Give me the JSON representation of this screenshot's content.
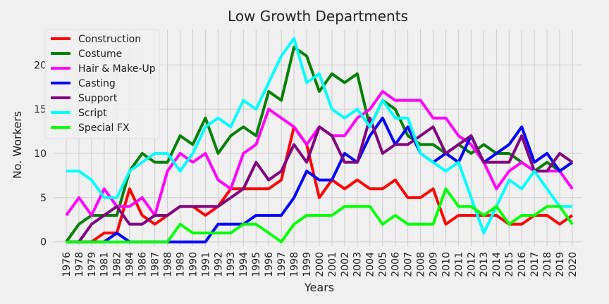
{
  "chart_data": {
    "type": "line",
    "title": "Low Growth Departments",
    "xlabel": "Years",
    "ylabel": "No. Workers",
    "ylim": [
      -0.5,
      24
    ],
    "yticks": [
      0,
      5,
      10,
      15,
      20
    ],
    "grid": true,
    "legend_position": "top-left",
    "categories": [
      "1976",
      "1978",
      "1979",
      "1981",
      "1982",
      "1984",
      "1986",
      "1987",
      "1988",
      "1989",
      "1990",
      "1991",
      "1992",
      "1993",
      "1994",
      "1995",
      "1996",
      "1997",
      "1998",
      "1999",
      "2000",
      "2001",
      "2002",
      "2003",
      "2004",
      "2005",
      "2006",
      "2007",
      "2008",
      "2009",
      "2010",
      "2011",
      "2012",
      "2013",
      "2014",
      "2015",
      "2016",
      "2017",
      "2018",
      "2019",
      "2020"
    ],
    "series": [
      {
        "name": "Construction",
        "color": "#ff0000",
        "values": [
          0,
          0,
          0,
          1,
          1,
          6,
          3,
          2,
          3,
          4,
          4,
          3,
          4,
          6,
          6,
          6,
          6,
          7,
          13,
          11,
          5,
          7,
          6,
          7,
          6,
          6,
          7,
          5,
          5,
          6,
          2,
          3,
          3,
          3,
          3,
          2,
          2,
          3,
          3,
          2,
          3
        ]
      },
      {
        "name": "Costume",
        "color": "#008000",
        "values": [
          0,
          2,
          3,
          3,
          3,
          8,
          10,
          9,
          9,
          12,
          11,
          14,
          10,
          12,
          13,
          12,
          17,
          16,
          22,
          21,
          17,
          19,
          18,
          19,
          13,
          16,
          15,
          12,
          11,
          11,
          10,
          11,
          10,
          11,
          10,
          10,
          9,
          8,
          9,
          8,
          9
        ]
      },
      {
        "name": "Hair & Make-Up",
        "color": "#ff00ff",
        "values": [
          3,
          5,
          3,
          6,
          4,
          4,
          5,
          3,
          8,
          10,
          9,
          10,
          7,
          6,
          10,
          11,
          15,
          14,
          13,
          11,
          13,
          12,
          12,
          14,
          15,
          17,
          16,
          16,
          16,
          14,
          14,
          12,
          11,
          9,
          6,
          8,
          9,
          8,
          8,
          8,
          6
        ]
      },
      {
        "name": "Casting",
        "color": "#0000ff",
        "values": [
          0,
          0,
          0,
          0,
          1,
          0,
          0,
          0,
          0,
          0,
          0,
          0,
          2,
          2,
          2,
          3,
          3,
          3,
          5,
          8,
          7,
          7,
          10,
          9,
          12,
          14,
          11,
          13,
          10,
          9,
          10,
          9,
          12,
          9,
          10,
          11,
          13,
          9,
          10,
          8,
          9
        ]
      },
      {
        "name": "Support",
        "color": "#800080",
        "values": [
          0,
          0,
          2,
          3,
          4,
          2,
          2,
          3,
          3,
          4,
          4,
          4,
          4,
          5,
          6,
          9,
          7,
          8,
          11,
          9,
          13,
          12,
          9,
          9,
          14,
          10,
          11,
          11,
          12,
          13,
          10,
          11,
          12,
          9,
          9,
          9,
          12,
          8,
          8,
          10,
          9
        ]
      },
      {
        "name": "Script",
        "color": "#00ffff",
        "values": [
          8,
          8,
          7,
          5,
          5,
          8,
          9,
          10,
          10,
          8,
          10,
          13,
          14,
          13,
          16,
          15,
          18,
          21,
          23,
          18,
          19,
          15,
          14,
          15,
          13,
          16,
          14,
          14,
          10,
          9,
          8,
          9,
          5,
          1,
          4,
          7,
          6,
          8,
          6,
          4,
          4
        ]
      },
      {
        "name": "Special FX",
        "color": "#00ff00",
        "values": [
          0,
          0,
          0,
          0,
          0,
          0,
          0,
          0,
          0,
          2,
          1,
          1,
          1,
          1,
          2,
          2,
          1,
          0,
          2,
          3,
          3,
          3,
          4,
          4,
          4,
          2,
          3,
          2,
          2,
          2,
          6,
          4,
          4,
          3,
          4,
          2,
          3,
          3,
          4,
          4,
          2
        ]
      }
    ]
  }
}
